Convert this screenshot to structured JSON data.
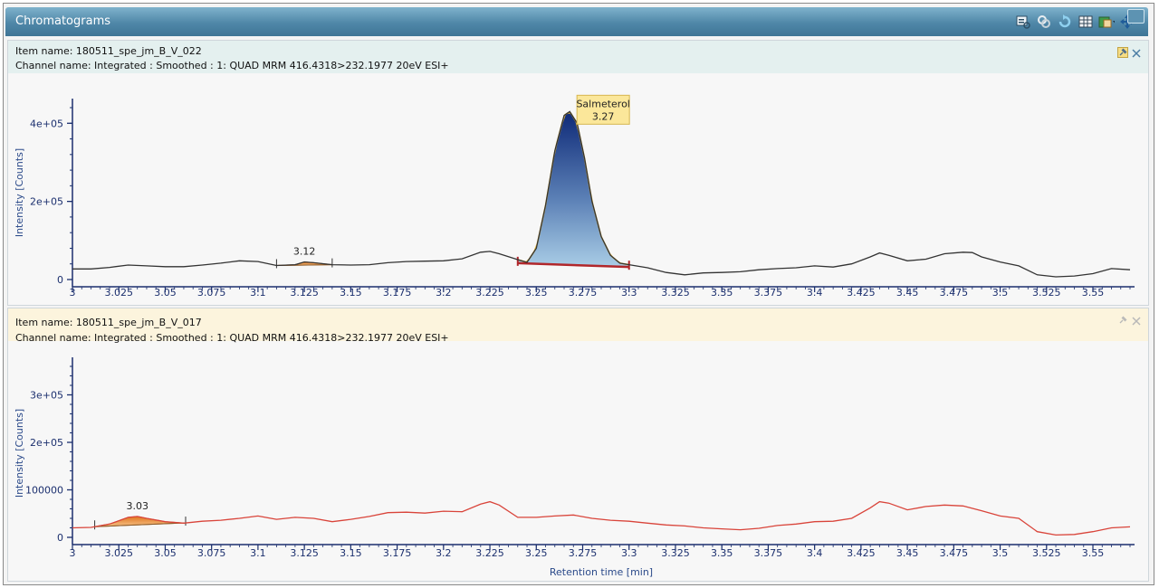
{
  "window": {
    "title": "Chromatograms",
    "toolbar_icons": [
      "zoom-window-icon",
      "link-icon",
      "refresh-icon",
      "table-icon",
      "export-icon",
      "move-icon"
    ],
    "restore_icon": "restore-window-icon"
  },
  "panes": [
    {
      "item_name": "Item name: 180511_spe_jm_B_V_022",
      "channel_name": "Channel name: Integrated : Smoothed :  1: QUAD MRM 416.4318>232.1977 20eV ESI+",
      "header_color": "#e4f0ef",
      "pin_icon": "pin-icon",
      "close_icon": "close-icon"
    },
    {
      "item_name": "Item name: 180511_spe_jm_B_V_017",
      "channel_name": "Channel name: Integrated : Smoothed :  1: QUAD MRM 416.4318>232.1977 20eV ESI+",
      "header_color": "#fcf4dd",
      "pin_icon": "pin-icon",
      "close_icon": "close-icon"
    }
  ],
  "chart_data": [
    {
      "type": "line",
      "ylabel": "Intensity [Counts]",
      "xlabel": "",
      "xlim": [
        3.0,
        3.57
      ],
      "ylim": [
        0,
        440000
      ],
      "x_ticks": [
        "3",
        "3.025",
        "3.05",
        "3.075",
        "3.1",
        "3.125",
        "3.15",
        "3.175",
        "3.2",
        "3.225",
        "3.25",
        "3.275",
        "3.3",
        "3.325",
        "3.35",
        "3.375",
        "3.4",
        "3.425",
        "3.45",
        "3.475",
        "3.5",
        "3.525",
        "3.55"
      ],
      "y_ticks": [
        {
          "v": 0,
          "label": "0"
        },
        {
          "v": 200000,
          "label": "2e+05"
        },
        {
          "v": 400000,
          "label": "4e+05"
        }
      ],
      "line_color": "#333333",
      "series": [
        {
          "x": [
            3.0,
            3.01,
            3.02,
            3.03,
            3.04,
            3.05,
            3.06,
            3.07,
            3.08,
            3.09,
            3.1,
            3.11,
            3.12,
            3.125,
            3.13,
            3.14,
            3.15,
            3.16,
            3.17,
            3.18,
            3.19,
            3.2,
            3.21,
            3.22,
            3.225,
            3.23,
            3.24,
            3.245,
            3.25,
            3.255,
            3.26,
            3.265,
            3.268,
            3.272,
            3.276,
            3.28,
            3.285,
            3.29,
            3.295,
            3.3,
            3.31,
            3.32,
            3.33,
            3.34,
            3.35,
            3.36,
            3.37,
            3.38,
            3.39,
            3.4,
            3.41,
            3.42,
            3.43,
            3.435,
            3.44,
            3.45,
            3.46,
            3.47,
            3.48,
            3.485,
            3.49,
            3.5,
            3.51,
            3.52,
            3.53,
            3.54,
            3.55,
            3.56,
            3.57
          ],
          "y": [
            27000,
            27000,
            31000,
            37000,
            35000,
            33000,
            33000,
            37000,
            42000,
            48000,
            46000,
            36000,
            38000,
            45000,
            43000,
            38000,
            37000,
            38000,
            43000,
            46000,
            47000,
            48000,
            53000,
            70000,
            72000,
            66000,
            51000,
            44000,
            80000,
            190000,
            330000,
            420000,
            430000,
            400000,
            310000,
            200000,
            110000,
            62000,
            42000,
            38000,
            30000,
            18000,
            12000,
            17000,
            18000,
            20000,
            25000,
            28000,
            30000,
            35000,
            32000,
            40000,
            58000,
            68000,
            62000,
            48000,
            52000,
            66000,
            70000,
            69000,
            58000,
            45000,
            35000,
            12000,
            7000,
            9000,
            15000,
            28000,
            25000
          ]
        }
      ],
      "peaks": [
        {
          "rt_label": "3.12",
          "start": 3.11,
          "end": 3.14,
          "apex": 3.125,
          "fill": "orange"
        },
        {
          "rt_label": "3.27",
          "name": "Salmeterol",
          "start": 3.24,
          "end": 3.3,
          "apex": 3.268,
          "fill": "blue",
          "baseline_start": 42000,
          "baseline_end": 32000
        }
      ]
    },
    {
      "type": "line",
      "ylabel": "Intensity [Counts]",
      "xlabel": "Retention time [min]",
      "xlim": [
        3.0,
        3.57
      ],
      "ylim": [
        0,
        360000
      ],
      "x_ticks": [
        "3",
        "3.025",
        "3.05",
        "3.075",
        "3.1",
        "3.125",
        "3.15",
        "3.175",
        "3.2",
        "3.225",
        "3.25",
        "3.275",
        "3.3",
        "3.325",
        "3.35",
        "3.375",
        "3.4",
        "3.425",
        "3.45",
        "3.475",
        "3.5",
        "3.525",
        "3.55"
      ],
      "y_ticks": [
        {
          "v": 0,
          "label": "0"
        },
        {
          "v": 100000,
          "label": "100000"
        },
        {
          "v": 200000,
          "label": "2e+05"
        },
        {
          "v": 300000,
          "label": "3e+05"
        }
      ],
      "line_color": "#d9443a",
      "series": [
        {
          "x": [
            3.0,
            3.01,
            3.02,
            3.03,
            3.035,
            3.04,
            3.05,
            3.06,
            3.07,
            3.08,
            3.09,
            3.1,
            3.11,
            3.12,
            3.13,
            3.14,
            3.15,
            3.16,
            3.17,
            3.18,
            3.19,
            3.2,
            3.21,
            3.22,
            3.225,
            3.23,
            3.24,
            3.25,
            3.26,
            3.27,
            3.28,
            3.29,
            3.3,
            3.31,
            3.32,
            3.33,
            3.34,
            3.35,
            3.36,
            3.37,
            3.38,
            3.39,
            3.4,
            3.41,
            3.42,
            3.43,
            3.435,
            3.44,
            3.45,
            3.46,
            3.47,
            3.48,
            3.49,
            3.5,
            3.51,
            3.52,
            3.53,
            3.54,
            3.55,
            3.56,
            3.57
          ],
          "y": [
            20000,
            21000,
            28000,
            42000,
            44000,
            40000,
            33000,
            30000,
            34000,
            36000,
            40000,
            45000,
            38000,
            42000,
            40000,
            33000,
            38000,
            44000,
            52000,
            53000,
            51000,
            55000,
            54000,
            70000,
            75000,
            68000,
            42000,
            42000,
            45000,
            47000,
            40000,
            36000,
            34000,
            30000,
            26000,
            24000,
            20000,
            18000,
            16000,
            19000,
            25000,
            28000,
            33000,
            34000,
            40000,
            62000,
            75000,
            72000,
            58000,
            65000,
            68000,
            66000,
            56000,
            45000,
            40000,
            12000,
            5000,
            6000,
            12000,
            20000,
            22000
          ]
        }
      ],
      "peaks": [
        {
          "rt_label": "3.03",
          "start": 3.012,
          "end": 3.061,
          "apex": 3.035,
          "fill": "orange"
        }
      ]
    }
  ]
}
